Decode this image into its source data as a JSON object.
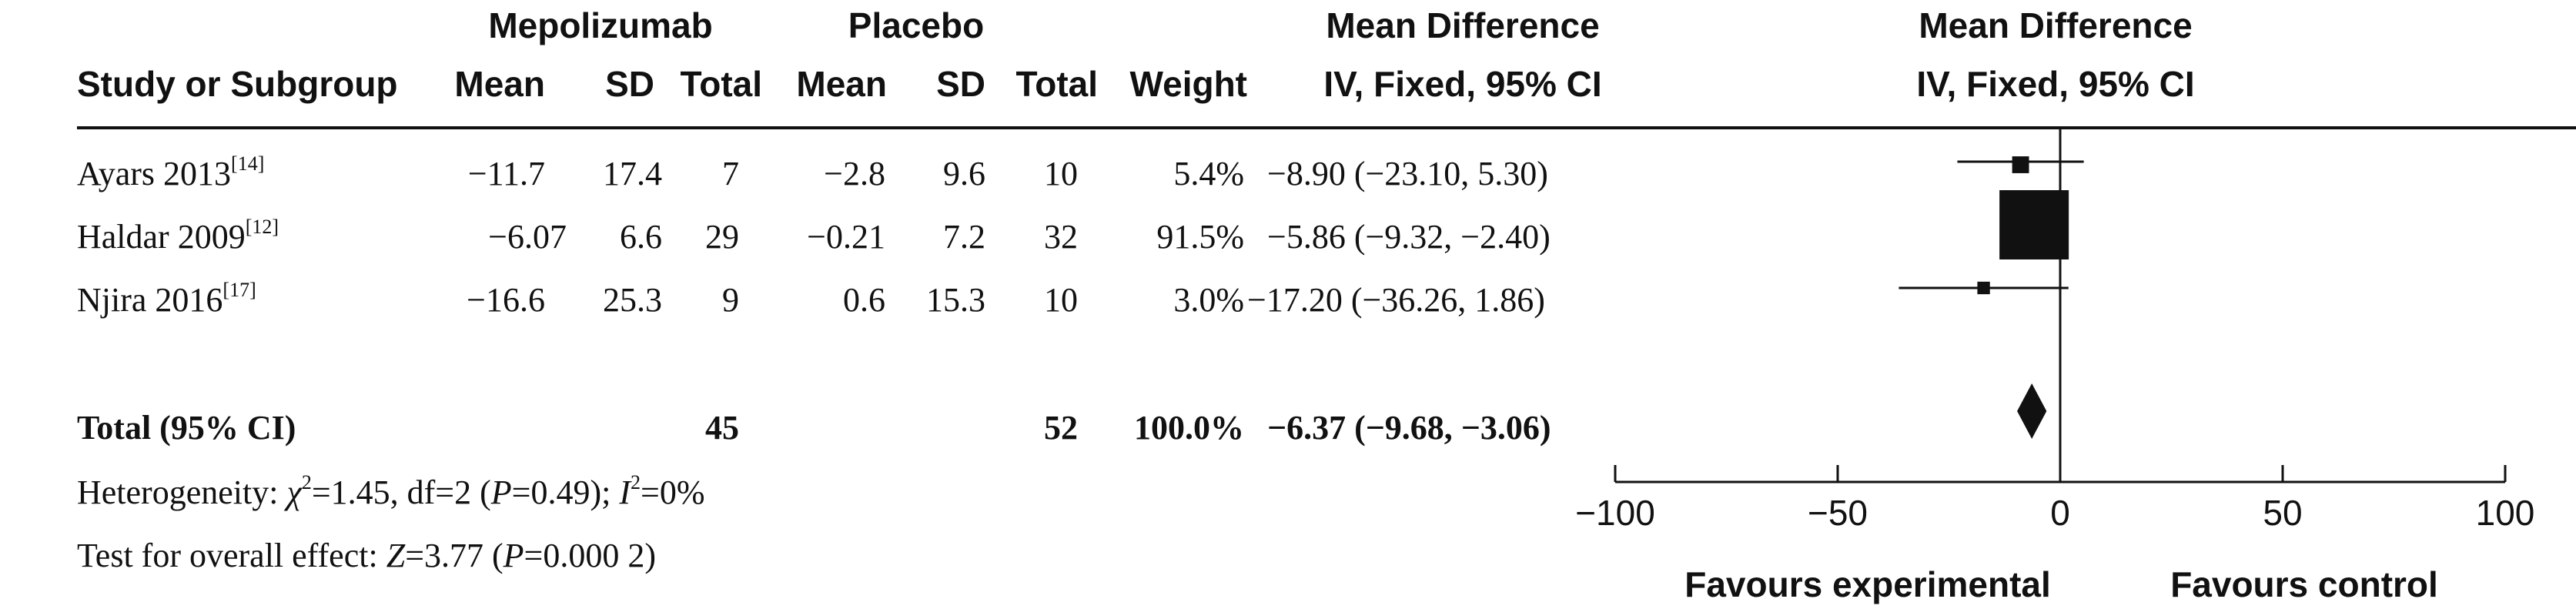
{
  "header": {
    "group1": "Mepolizumab",
    "group2": "Placebo",
    "md_group": "Mean Difference",
    "md_group_plot": "Mean Difference",
    "col_study": "Study or Subgroup",
    "col_mean1": "Mean",
    "col_sd1": "SD",
    "col_total1": "Total",
    "col_mean2": "Mean",
    "col_sd2": "SD",
    "col_total2": "Total",
    "col_weight": "Weight",
    "col_ci": "IV, Fixed, 95% CI",
    "col_ci_plot": "IV, Fixed, 95% CI"
  },
  "rows": [
    {
      "study": "Ayars 2013",
      "ref": "[14]",
      "mean1": "−11.7",
      "sd1": "17.4",
      "total1": "7",
      "mean2": "−2.8",
      "sd2": "9.6",
      "total2": "10",
      "weight": "5.4%",
      "ci": "−8.90 (−23.10, 5.30)"
    },
    {
      "study": "Haldar 2009",
      "ref": "[12]",
      "mean1": "−6.07",
      "sd1": "6.6",
      "total1": "29",
      "mean2": "−0.21",
      "sd2": "7.2",
      "total2": "32",
      "weight": "91.5%",
      "ci": "−5.86 (−9.32, −2.40)"
    },
    {
      "study": "Njira 2016",
      "ref": "[17]",
      "mean1": "−16.6",
      "sd1": "25.3",
      "total1": "9",
      "mean2": "0.6",
      "sd2": "15.3",
      "total2": "10",
      "weight": "3.0%",
      "ci": "−17.20 (−36.26, 1.86)"
    }
  ],
  "total": {
    "label": "Total (95% CI)",
    "total1": "45",
    "total2": "52",
    "weight": "100.0%",
    "ci": "−6.37 (−9.68, −3.06)"
  },
  "footer": {
    "het_prefix": "Heterogeneity: ",
    "chi": "χ",
    "chi_sup": "2",
    "het_mid": "=1.45, df=2 (",
    "p1": "P",
    "p1_val": "=0.49); ",
    "i2": "I",
    "i2_sup": "2",
    "i2_val": "=0%",
    "overall_prefix": "Test for overall effect: ",
    "z": "Z",
    "z_val": "=3.77 (",
    "p2": "P",
    "p2_val": "=0.000 2)"
  },
  "chart_data": {
    "type": "forest",
    "xlim": [
      -100,
      100
    ],
    "ticks": [
      -100,
      -50,
      0,
      50,
      100
    ],
    "tick_labels": [
      "−100",
      "−50",
      "0",
      "50",
      "100"
    ],
    "xlabel_left": "Favours experimental",
    "xlabel_right": "Favours control",
    "studies": [
      {
        "name": "Ayars 2013",
        "estimate": -8.9,
        "lower": -23.1,
        "upper": 5.3,
        "weight": 5.4
      },
      {
        "name": "Haldar 2009",
        "estimate": -5.86,
        "lower": -9.32,
        "upper": -2.4,
        "weight": 91.5
      },
      {
        "name": "Njira 2016",
        "estimate": -17.2,
        "lower": -36.26,
        "upper": 1.86,
        "weight": 3.0
      }
    ],
    "pooled": {
      "estimate": -6.37,
      "lower": -9.68,
      "upper": -3.06
    },
    "colors": {
      "ink": "#111111"
    }
  }
}
